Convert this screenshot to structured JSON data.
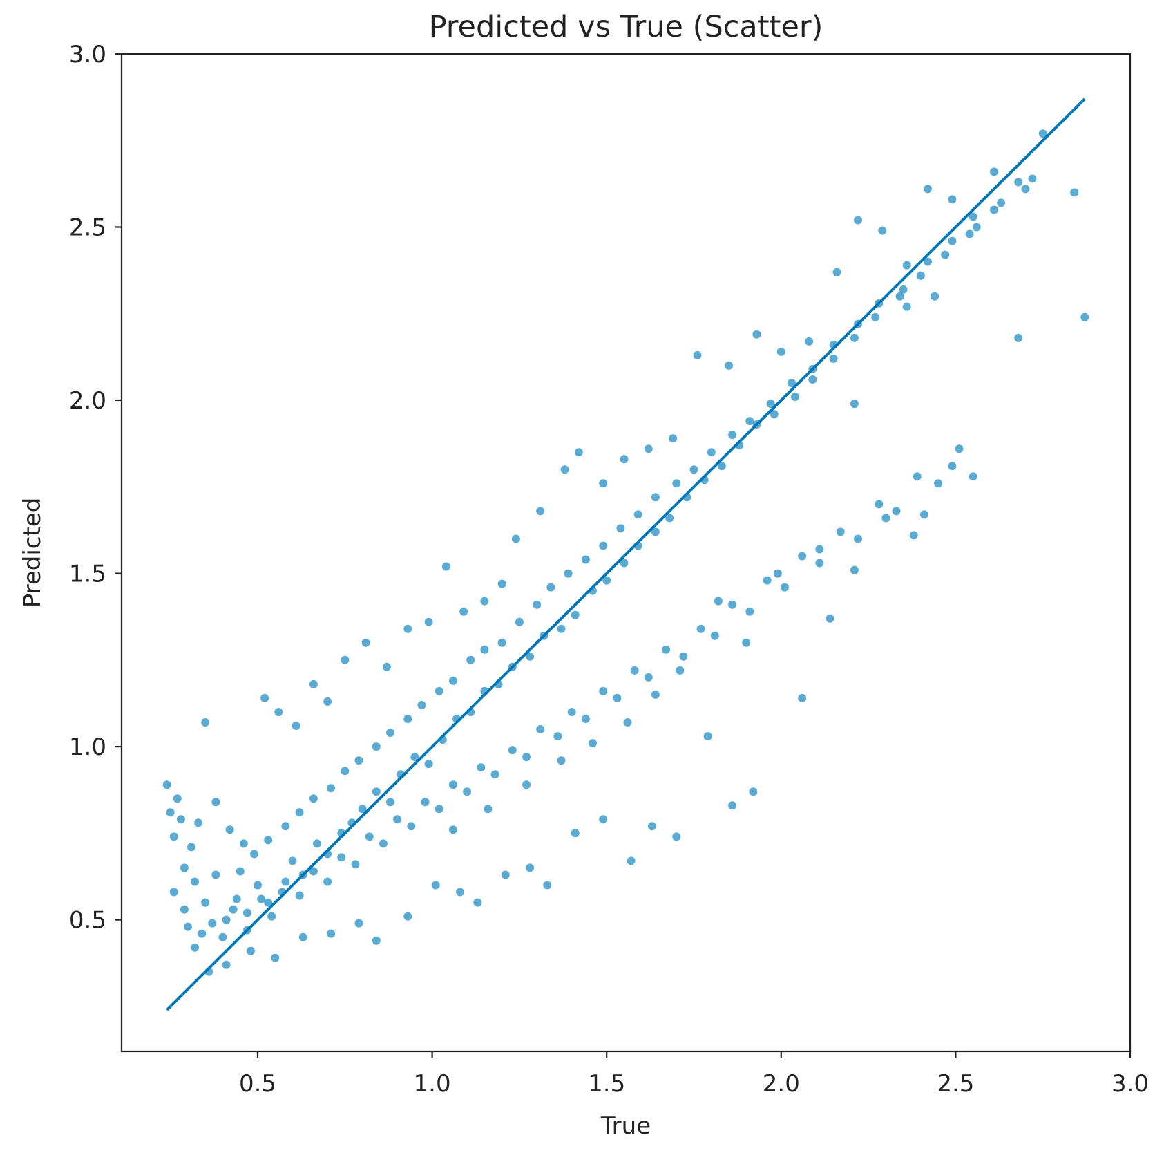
{
  "chart_data": {
    "type": "scatter",
    "title": "Predicted vs True (Scatter)",
    "xlabel": "True",
    "ylabel": "Predicted",
    "xlim": [
      0.11,
      3.0
    ],
    "ylim": [
      0.12,
      3.0
    ],
    "xticks": [
      "0.5",
      "1.0",
      "1.5",
      "2.0",
      "2.5",
      "3.0"
    ],
    "yticks": [
      "0.5",
      "1.0",
      "1.5",
      "2.0",
      "2.5",
      "3.0"
    ],
    "grid": false,
    "legend": "none",
    "colors": {
      "points": "#0a83bf",
      "line": "#0077b8"
    },
    "reference_line": {
      "x": [
        0.24,
        2.87
      ],
      "y": [
        0.24,
        2.87
      ]
    },
    "series": [
      {
        "points": [
          [
            0.24,
            0.89
          ],
          [
            0.25,
            0.81
          ],
          [
            0.26,
            0.74
          ],
          [
            0.27,
            0.85
          ],
          [
            0.28,
            0.79
          ],
          [
            0.29,
            0.65
          ],
          [
            0.31,
            0.71
          ],
          [
            0.33,
            0.78
          ],
          [
            0.35,
            1.07
          ],
          [
            0.38,
            0.84
          ],
          [
            0.42,
            0.76
          ],
          [
            0.46,
            0.72
          ],
          [
            0.52,
            1.14
          ],
          [
            0.56,
            1.1
          ],
          [
            0.61,
            1.06
          ],
          [
            0.66,
            1.18
          ],
          [
            0.7,
            1.13
          ],
          [
            0.75,
            1.25
          ],
          [
            0.81,
            1.3
          ],
          [
            0.87,
            1.23
          ],
          [
            0.93,
            1.34
          ],
          [
            0.99,
            1.36
          ],
          [
            1.04,
            1.52
          ],
          [
            1.09,
            1.39
          ],
          [
            1.15,
            1.42
          ],
          [
            1.2,
            1.47
          ],
          [
            1.24,
            1.6
          ],
          [
            1.31,
            1.68
          ],
          [
            1.38,
            1.8
          ],
          [
            1.42,
            1.85
          ],
          [
            1.49,
            1.76
          ],
          [
            1.55,
            1.83
          ],
          [
            1.62,
            1.86
          ],
          [
            1.69,
            1.89
          ],
          [
            1.76,
            2.13
          ],
          [
            1.85,
            2.1
          ],
          [
            1.93,
            2.19
          ],
          [
            2.0,
            2.14
          ],
          [
            2.08,
            2.17
          ],
          [
            2.16,
            2.37
          ],
          [
            2.22,
            2.52
          ],
          [
            2.29,
            2.49
          ],
          [
            2.36,
            2.39
          ],
          [
            2.42,
            2.61
          ],
          [
            2.49,
            2.58
          ],
          [
            2.55,
            2.53
          ],
          [
            2.61,
            2.66
          ],
          [
            2.68,
            2.63
          ],
          [
            2.75,
            2.77
          ],
          [
            2.84,
            2.6
          ],
          [
            0.3,
            0.48
          ],
          [
            0.32,
            0.42
          ],
          [
            0.36,
            0.35
          ],
          [
            0.41,
            0.37
          ],
          [
            0.48,
            0.41
          ],
          [
            0.55,
            0.39
          ],
          [
            0.63,
            0.45
          ],
          [
            0.71,
            0.46
          ],
          [
            0.79,
            0.49
          ],
          [
            0.84,
            0.44
          ],
          [
            0.93,
            0.51
          ],
          [
            1.01,
            0.6
          ],
          [
            1.08,
            0.58
          ],
          [
            1.13,
            0.55
          ],
          [
            1.21,
            0.63
          ],
          [
            1.28,
            0.65
          ],
          [
            1.33,
            0.6
          ],
          [
            1.41,
            0.75
          ],
          [
            1.49,
            0.79
          ],
          [
            1.57,
            0.67
          ],
          [
            1.63,
            0.77
          ],
          [
            1.7,
            0.74
          ],
          [
            1.79,
            1.03
          ],
          [
            1.86,
            0.83
          ],
          [
            1.92,
            0.87
          ],
          [
            2.06,
            1.14
          ],
          [
            2.14,
            1.37
          ],
          [
            2.21,
            1.51
          ],
          [
            2.3,
            1.66
          ],
          [
            2.38,
            1.61
          ],
          [
            2.41,
            1.67
          ],
          [
            2.49,
            1.81
          ],
          [
            2.55,
            1.78
          ],
          [
            2.68,
            2.18
          ],
          [
            2.87,
            2.24
          ],
          [
            2.44,
            2.3
          ],
          [
            2.36,
            2.27
          ],
          [
            2.21,
            1.99
          ],
          [
            2.11,
            1.57
          ],
          [
            1.99,
            1.5
          ],
          [
            1.9,
            1.3
          ],
          [
            1.82,
            1.42
          ],
          [
            1.71,
            1.22
          ],
          [
            1.64,
            1.15
          ],
          [
            1.56,
            1.07
          ],
          [
            1.46,
            1.01
          ],
          [
            1.37,
            0.96
          ],
          [
            1.27,
            0.89
          ],
          [
            1.16,
            0.82
          ],
          [
            1.06,
            0.76
          ],
          [
            0.44,
            0.56
          ],
          [
            0.47,
            0.52
          ],
          [
            0.5,
            0.6
          ],
          [
            0.53,
            0.55
          ],
          [
            0.57,
            0.58
          ],
          [
            0.6,
            0.67
          ],
          [
            0.63,
            0.63
          ],
          [
            0.67,
            0.72
          ],
          [
            0.7,
            0.69
          ],
          [
            0.74,
            0.75
          ],
          [
            0.77,
            0.78
          ],
          [
            0.8,
            0.82
          ],
          [
            0.84,
            0.87
          ],
          [
            0.88,
            0.84
          ],
          [
            0.91,
            0.92
          ],
          [
            0.95,
            0.97
          ],
          [
            0.99,
            0.95
          ],
          [
            1.03,
            1.02
          ],
          [
            1.07,
            1.08
          ],
          [
            1.11,
            1.1
          ],
          [
            1.15,
            1.16
          ],
          [
            1.19,
            1.18
          ],
          [
            1.23,
            1.23
          ],
          [
            1.28,
            1.26
          ],
          [
            1.32,
            1.32
          ],
          [
            1.37,
            1.34
          ],
          [
            1.41,
            1.38
          ],
          [
            1.46,
            1.45
          ],
          [
            1.5,
            1.48
          ],
          [
            1.55,
            1.53
          ],
          [
            1.59,
            1.58
          ],
          [
            1.64,
            1.62
          ],
          [
            1.68,
            1.66
          ],
          [
            1.73,
            1.72
          ],
          [
            1.78,
            1.77
          ],
          [
            1.83,
            1.81
          ],
          [
            1.88,
            1.87
          ],
          [
            1.93,
            1.93
          ],
          [
            1.98,
            1.96
          ],
          [
            2.04,
            2.01
          ],
          [
            2.09,
            2.06
          ],
          [
            2.15,
            2.12
          ],
          [
            2.21,
            2.18
          ],
          [
            2.27,
            2.24
          ],
          [
            2.34,
            2.3
          ],
          [
            2.4,
            2.36
          ],
          [
            2.47,
            2.42
          ],
          [
            2.54,
            2.48
          ],
          [
            2.61,
            2.55
          ],
          [
            2.7,
            2.61
          ],
          [
            0.26,
            0.58
          ],
          [
            0.29,
            0.53
          ],
          [
            0.32,
            0.61
          ],
          [
            0.35,
            0.55
          ],
          [
            0.38,
            0.63
          ],
          [
            0.41,
            0.5
          ],
          [
            0.45,
            0.64
          ],
          [
            0.49,
            0.69
          ],
          [
            0.53,
            0.73
          ],
          [
            0.58,
            0.77
          ],
          [
            0.62,
            0.81
          ],
          [
            0.66,
            0.85
          ],
          [
            0.71,
            0.88
          ],
          [
            0.75,
            0.93
          ],
          [
            0.79,
            0.96
          ],
          [
            0.84,
            1.0
          ],
          [
            0.88,
            1.04
          ],
          [
            0.93,
            1.08
          ],
          [
            0.97,
            1.12
          ],
          [
            1.02,
            1.16
          ],
          [
            1.06,
            1.19
          ],
          [
            1.11,
            1.25
          ],
          [
            1.15,
            1.28
          ],
          [
            1.2,
            1.3
          ],
          [
            1.25,
            1.36
          ],
          [
            1.3,
            1.41
          ],
          [
            1.34,
            1.46
          ],
          [
            1.39,
            1.5
          ],
          [
            1.44,
            1.54
          ],
          [
            1.49,
            1.58
          ],
          [
            1.54,
            1.63
          ],
          [
            1.59,
            1.67
          ],
          [
            1.64,
            1.72
          ],
          [
            1.7,
            1.76
          ],
          [
            1.75,
            1.8
          ],
          [
            1.8,
            1.85
          ],
          [
            1.86,
            1.9
          ],
          [
            1.91,
            1.94
          ],
          [
            1.97,
            1.99
          ],
          [
            2.03,
            2.05
          ],
          [
            2.09,
            2.09
          ],
          [
            2.15,
            2.16
          ],
          [
            2.22,
            2.22
          ],
          [
            2.28,
            2.28
          ],
          [
            2.35,
            2.32
          ],
          [
            2.42,
            2.4
          ],
          [
            2.49,
            2.46
          ],
          [
            2.56,
            2.5
          ],
          [
            2.63,
            2.57
          ],
          [
            2.72,
            2.64
          ],
          [
            0.34,
            0.46
          ],
          [
            0.37,
            0.49
          ],
          [
            0.4,
            0.45
          ],
          [
            0.43,
            0.53
          ],
          [
            0.47,
            0.47
          ],
          [
            0.51,
            0.56
          ],
          [
            0.54,
            0.51
          ],
          [
            0.58,
            0.61
          ],
          [
            0.62,
            0.57
          ],
          [
            0.66,
            0.64
          ],
          [
            0.7,
            0.61
          ],
          [
            0.74,
            0.68
          ],
          [
            0.78,
            0.66
          ],
          [
            0.82,
            0.74
          ],
          [
            0.86,
            0.72
          ],
          [
            0.9,
            0.79
          ],
          [
            0.94,
            0.77
          ],
          [
            0.98,
            0.84
          ],
          [
            1.02,
            0.82
          ],
          [
            1.06,
            0.89
          ],
          [
            1.1,
            0.87
          ],
          [
            1.14,
            0.94
          ],
          [
            1.18,
            0.92
          ],
          [
            1.23,
            0.99
          ],
          [
            1.27,
            0.97
          ],
          [
            1.31,
            1.05
          ],
          [
            1.36,
            1.03
          ],
          [
            1.4,
            1.1
          ],
          [
            1.44,
            1.08
          ],
          [
            1.49,
            1.16
          ],
          [
            1.53,
            1.14
          ],
          [
            1.58,
            1.22
          ],
          [
            1.62,
            1.2
          ],
          [
            1.67,
            1.28
          ],
          [
            1.72,
            1.26
          ],
          [
            1.77,
            1.34
          ],
          [
            1.81,
            1.32
          ],
          [
            1.86,
            1.41
          ],
          [
            1.91,
            1.39
          ],
          [
            1.96,
            1.48
          ],
          [
            2.01,
            1.46
          ],
          [
            2.06,
            1.55
          ],
          [
            2.11,
            1.53
          ],
          [
            2.17,
            1.62
          ],
          [
            2.22,
            1.6
          ],
          [
            2.28,
            1.7
          ],
          [
            2.33,
            1.68
          ],
          [
            2.39,
            1.78
          ],
          [
            2.45,
            1.76
          ],
          [
            2.51,
            1.86
          ]
        ]
      }
    ]
  }
}
